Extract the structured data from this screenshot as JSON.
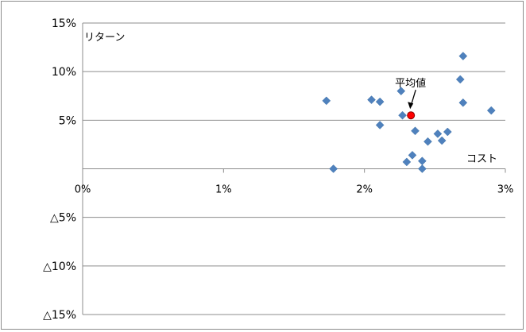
{
  "chart_data": {
    "type": "scatter",
    "title": "",
    "xlabel": "コスト",
    "ylabel": "リターン",
    "xlim": [
      0,
      3
    ],
    "ylim": [
      -15,
      15
    ],
    "x_ticks": [
      {
        "value": 0,
        "label": "0%"
      },
      {
        "value": 1,
        "label": "1%"
      },
      {
        "value": 2,
        "label": "2%"
      },
      {
        "value": 3,
        "label": "3%"
      }
    ],
    "y_ticks": [
      {
        "value": 15,
        "label": "15%"
      },
      {
        "value": 10,
        "label": "10%"
      },
      {
        "value": 5,
        "label": "5%"
      },
      {
        "value": -5,
        "label": "△5%"
      },
      {
        "value": -10,
        "label": "△10%"
      },
      {
        "value": -15,
        "label": "△15%"
      }
    ],
    "grid": true,
    "series": [
      {
        "marker": "diamond",
        "color": "#4f81bd",
        "points": [
          {
            "x": 1.73,
            "y": 7.0
          },
          {
            "x": 1.78,
            "y": 0.0
          },
          {
            "x": 2.05,
            "y": 7.1
          },
          {
            "x": 2.11,
            "y": 6.9
          },
          {
            "x": 2.11,
            "y": 4.5
          },
          {
            "x": 2.26,
            "y": 8.0
          },
          {
            "x": 2.27,
            "y": 5.5
          },
          {
            "x": 2.3,
            "y": 0.7
          },
          {
            "x": 2.34,
            "y": 1.4
          },
          {
            "x": 2.36,
            "y": 3.9
          },
          {
            "x": 2.41,
            "y": 0.8
          },
          {
            "x": 2.41,
            "y": 0.0
          },
          {
            "x": 2.45,
            "y": 2.8
          },
          {
            "x": 2.52,
            "y": 3.6
          },
          {
            "x": 2.55,
            "y": 2.9
          },
          {
            "x": 2.59,
            "y": 3.8
          },
          {
            "x": 2.68,
            "y": 9.2
          },
          {
            "x": 2.7,
            "y": 6.8
          },
          {
            "x": 2.7,
            "y": 11.6
          },
          {
            "x": 2.9,
            "y": 6.0
          }
        ]
      }
    ],
    "highlight": {
      "label": "平均値",
      "x": 2.33,
      "y": 5.5,
      "color": "#ff0000"
    }
  }
}
